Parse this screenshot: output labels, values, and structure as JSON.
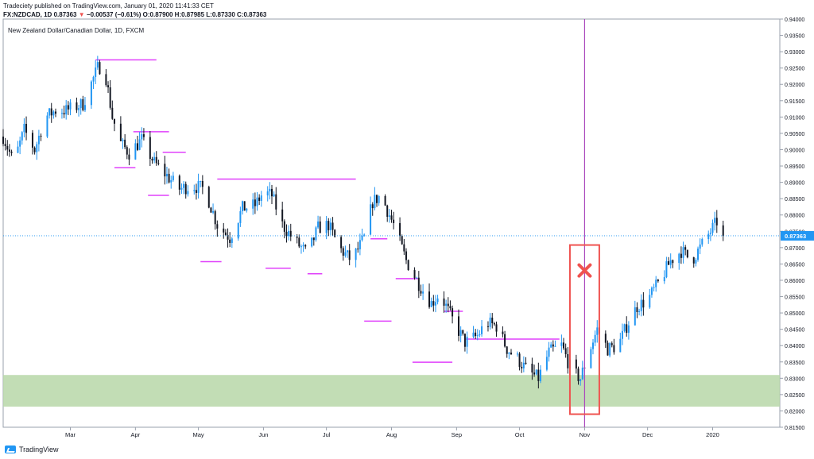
{
  "header": {
    "line1": "Tradeciety published on TradingView.com, January 01, 2020 11:41:33 CET",
    "symbol": "FX:NZDCAD, 1D",
    "last": "0.87363",
    "change": "−0.00537 (−0.61%)",
    "o_label": "O:",
    "o_value": "0.87900",
    "h_label": "H:",
    "h_value": "0.87985",
    "l_label": "L:",
    "l_value": "0.87330",
    "c_label": "C:",
    "c_value": "0.87363"
  },
  "footer": {
    "brand": "TradingView"
  },
  "colors": {
    "up": "#2196f3",
    "down": "#131722",
    "levels": "#e040fb",
    "zone": "#b7d7a8",
    "box": "#ef5350",
    "vline": "#ab47bc",
    "price": "#2196f3"
  },
  "chart_data": {
    "type": "candlestick",
    "title": "New Zealand Dollar/Canadian Dollar, 1D, FXCM",
    "xlabel": "",
    "ylabel": "",
    "ylim": [
      0.815,
      0.94
    ],
    "y_ticks": [
      "0.94000",
      "0.93500",
      "0.93000",
      "0.92500",
      "0.92000",
      "0.91500",
      "0.91000",
      "0.90500",
      "0.90000",
      "0.89500",
      "0.89000",
      "0.88500",
      "0.88000",
      "0.87500",
      "0.87000",
      "0.86500",
      "0.86000",
      "0.85500",
      "0.85000",
      "0.84500",
      "0.84000",
      "0.83500",
      "0.83000",
      "0.82500",
      "0.82000",
      "0.81500"
    ],
    "x_ticks": [
      "Mar",
      "Apr",
      "May",
      "Jun",
      "Jul",
      "Aug",
      "Sep",
      "Oct",
      "Nov",
      "Dec",
      "2020"
    ],
    "x_tick_days": [
      32,
      63,
      93,
      124,
      154,
      185,
      216,
      246,
      277,
      307,
      338
    ],
    "x_range_days": [
      0,
      370
    ],
    "last_price": 0.87363,
    "last_price_label": "0.87363",
    "anchors": [
      [
        0,
        0.904
      ],
      [
        5,
        0.896
      ],
      [
        10,
        0.906
      ],
      [
        15,
        0.9
      ],
      [
        20,
        0.91
      ],
      [
        25,
        0.912
      ],
      [
        30,
        0.912
      ],
      [
        38,
        0.914
      ],
      [
        45,
        0.925
      ],
      [
        48,
        0.926
      ],
      [
        52,
        0.91
      ],
      [
        56,
        0.902
      ],
      [
        60,
        0.899
      ],
      [
        66,
        0.903
      ],
      [
        72,
        0.896
      ],
      [
        78,
        0.892
      ],
      [
        84,
        0.888
      ],
      [
        90,
        0.889
      ],
      [
        96,
        0.888
      ],
      [
        102,
        0.877
      ],
      [
        108,
        0.873
      ],
      [
        114,
        0.882
      ],
      [
        120,
        0.883
      ],
      [
        124,
        0.887
      ],
      [
        128,
        0.886
      ],
      [
        133,
        0.877
      ],
      [
        139,
        0.872
      ],
      [
        145,
        0.868
      ],
      [
        150,
        0.876
      ],
      [
        155,
        0.877
      ],
      [
        160,
        0.87
      ],
      [
        166,
        0.866
      ],
      [
        172,
        0.873
      ],
      [
        176,
        0.884
      ],
      [
        180,
        0.886
      ],
      [
        186,
        0.877
      ],
      [
        192,
        0.866
      ],
      [
        198,
        0.859
      ],
      [
        204,
        0.853
      ],
      [
        208,
        0.856
      ],
      [
        214,
        0.848
      ],
      [
        220,
        0.841
      ],
      [
        226,
        0.843
      ],
      [
        230,
        0.847
      ],
      [
        235,
        0.846
      ],
      [
        240,
        0.839
      ],
      [
        245,
        0.836
      ],
      [
        250,
        0.832
      ],
      [
        255,
        0.83
      ],
      [
        260,
        0.838
      ],
      [
        266,
        0.84
      ],
      [
        271,
        0.832
      ],
      [
        275,
        0.83
      ],
      [
        279,
        0.838
      ],
      [
        283,
        0.845
      ],
      [
        288,
        0.839
      ],
      [
        293,
        0.84
      ],
      [
        297,
        0.846
      ],
      [
        302,
        0.852
      ],
      [
        307,
        0.854
      ],
      [
        313,
        0.86
      ],
      [
        318,
        0.866
      ],
      [
        323,
        0.869
      ],
      [
        328,
        0.866
      ],
      [
        333,
        0.871
      ],
      [
        338,
        0.876
      ],
      [
        341,
        0.879
      ],
      [
        343,
        0.8736
      ]
    ],
    "horizontal_levels": [
      {
        "from_day": 44,
        "to_day": 73,
        "price": 0.9275
      },
      {
        "from_day": 53,
        "to_day": 63,
        "price": 0.8945
      },
      {
        "from_day": 62,
        "to_day": 79,
        "price": 0.9055
      },
      {
        "from_day": 69,
        "to_day": 79,
        "price": 0.886
      },
      {
        "from_day": 76,
        "to_day": 87,
        "price": 0.8992
      },
      {
        "from_day": 94,
        "to_day": 104,
        "price": 0.8657
      },
      {
        "from_day": 102,
        "to_day": 168,
        "price": 0.891
      },
      {
        "from_day": 125,
        "to_day": 137,
        "price": 0.8637
      },
      {
        "from_day": 145,
        "to_day": 152,
        "price": 0.862
      },
      {
        "from_day": 172,
        "to_day": 185,
        "price": 0.8475
      },
      {
        "from_day": 175,
        "to_day": 183,
        "price": 0.8727
      },
      {
        "from_day": 187,
        "to_day": 198,
        "price": 0.8605
      },
      {
        "from_day": 195,
        "to_day": 214,
        "price": 0.8349
      },
      {
        "from_day": 210,
        "to_day": 219,
        "price": 0.8505
      },
      {
        "from_day": 220,
        "to_day": 265,
        "price": 0.842
      }
    ],
    "support_zone": [
      0.8213,
      0.831
    ],
    "marker_vline_day": 277,
    "marker_box": {
      "from_day": 270,
      "to_day": 284,
      "price_low": 0.819,
      "price_high": 0.8708
    },
    "marker_x_price": 0.863
  }
}
